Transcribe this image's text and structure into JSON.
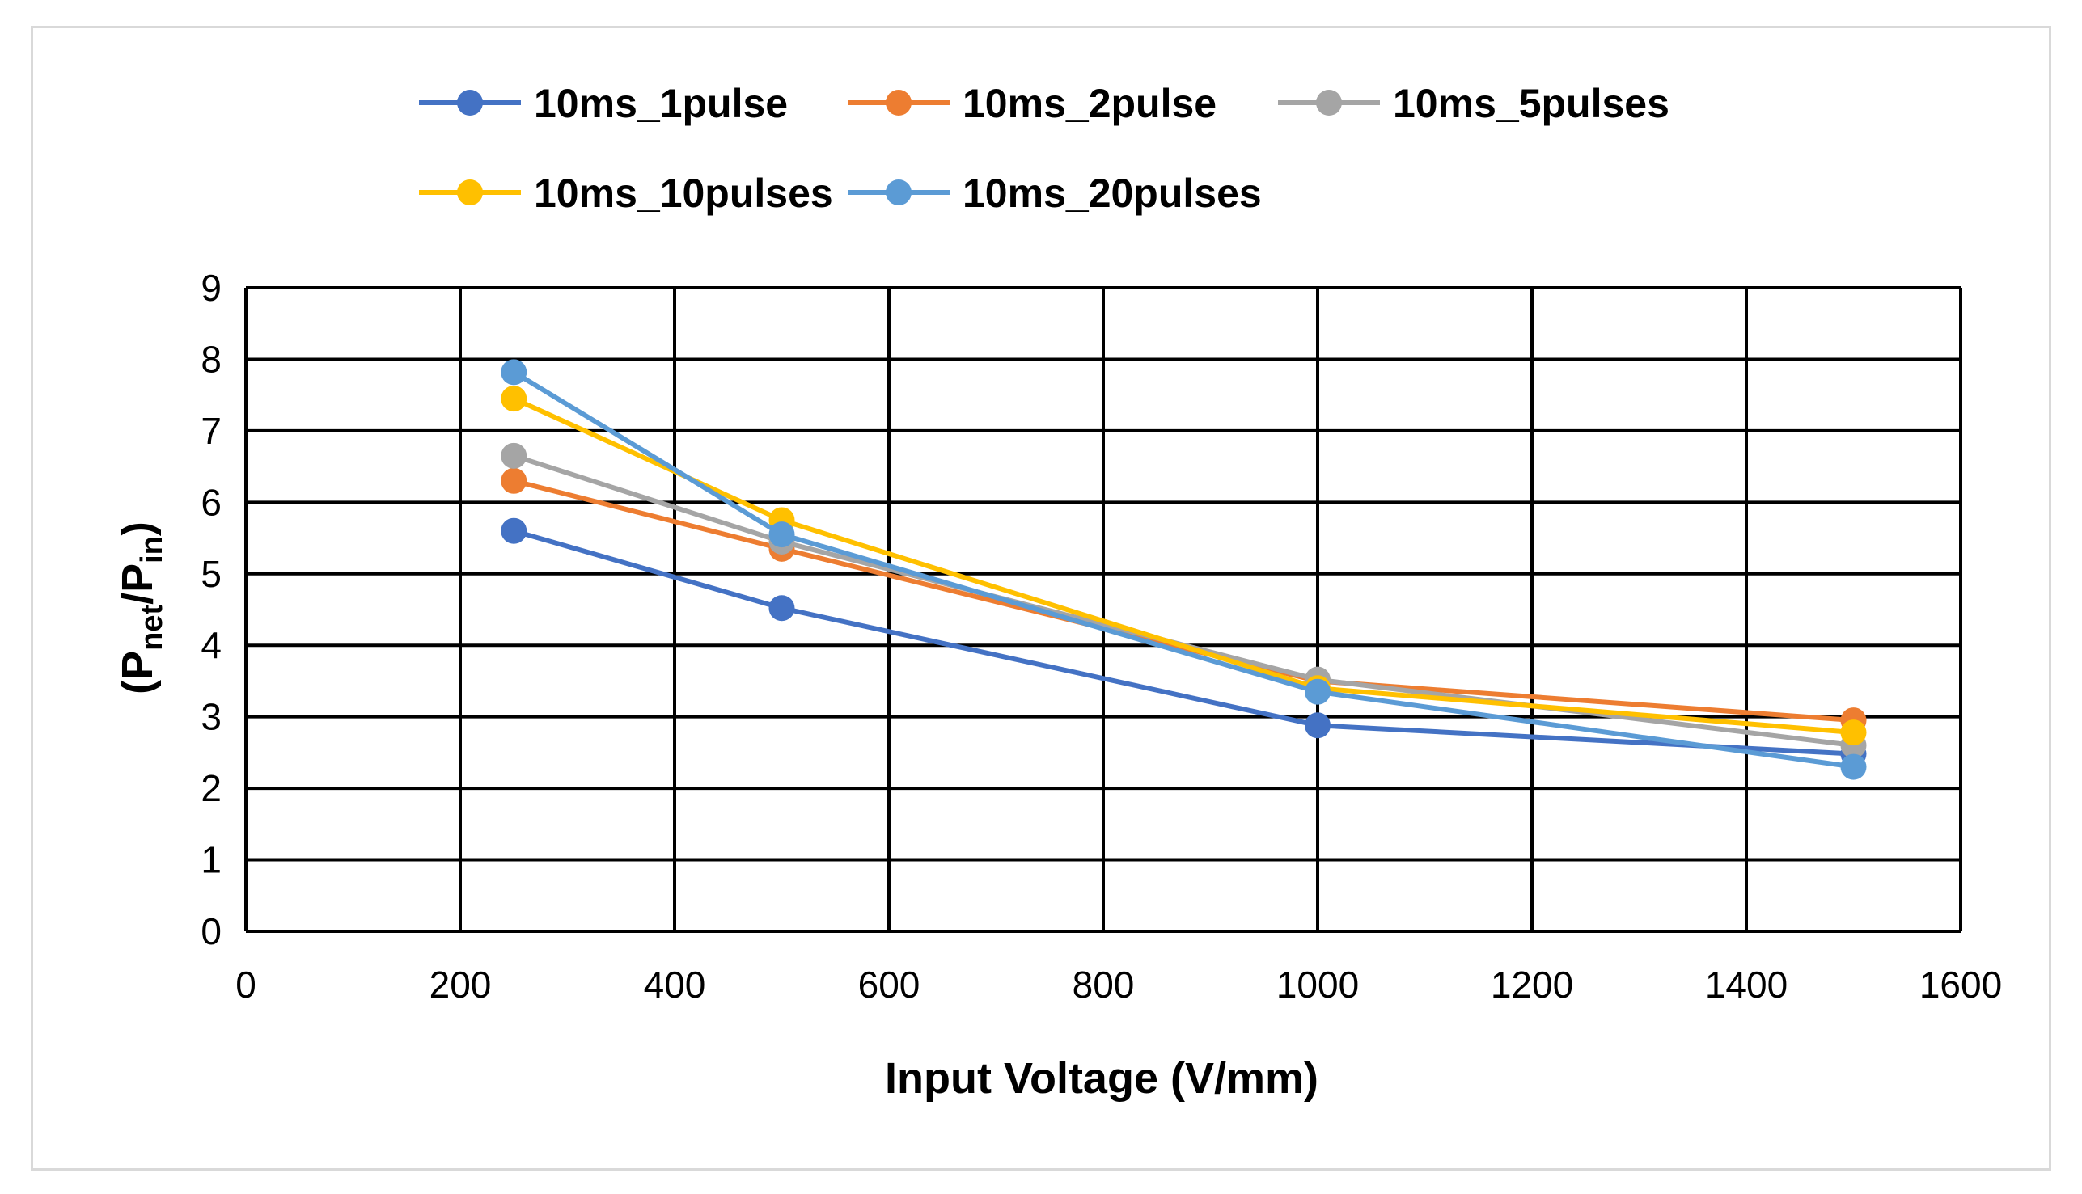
{
  "chart_data": {
    "type": "line",
    "title": "",
    "xlabel": "Input Voltage (V/mm)",
    "ylabel": {
      "base": "(P",
      "sub1": "net",
      "mid": "/P",
      "sub2": "in",
      "end": ")"
    },
    "xlim": [
      0,
      1600
    ],
    "ylim": [
      0,
      9
    ],
    "xticks": [
      0,
      200,
      400,
      600,
      800,
      1000,
      1200,
      1400,
      1600
    ],
    "yticks": [
      0,
      1,
      2,
      3,
      4,
      5,
      6,
      7,
      8,
      9
    ],
    "grid": true,
    "legend_position": "top",
    "x": [
      250,
      500,
      1000,
      1500
    ],
    "series": [
      {
        "name": "10ms_1pulse",
        "color": "#4472C4",
        "values": [
          5.6,
          4.52,
          2.88,
          2.48
        ]
      },
      {
        "name": "10ms_2pulse",
        "color": "#ED7D31",
        "values": [
          6.3,
          5.35,
          3.5,
          2.95
        ]
      },
      {
        "name": "10ms_5pulses",
        "color": "#A5A5A5",
        "values": [
          6.65,
          5.45,
          3.52,
          2.6
        ]
      },
      {
        "name": "10ms_10pulses",
        "color": "#FFC000",
        "values": [
          7.45,
          5.75,
          3.4,
          2.78
        ]
      },
      {
        "name": "10ms_20pulses",
        "color": "#5B9BD5",
        "values": [
          7.82,
          5.55,
          3.35,
          2.3
        ]
      }
    ]
  }
}
